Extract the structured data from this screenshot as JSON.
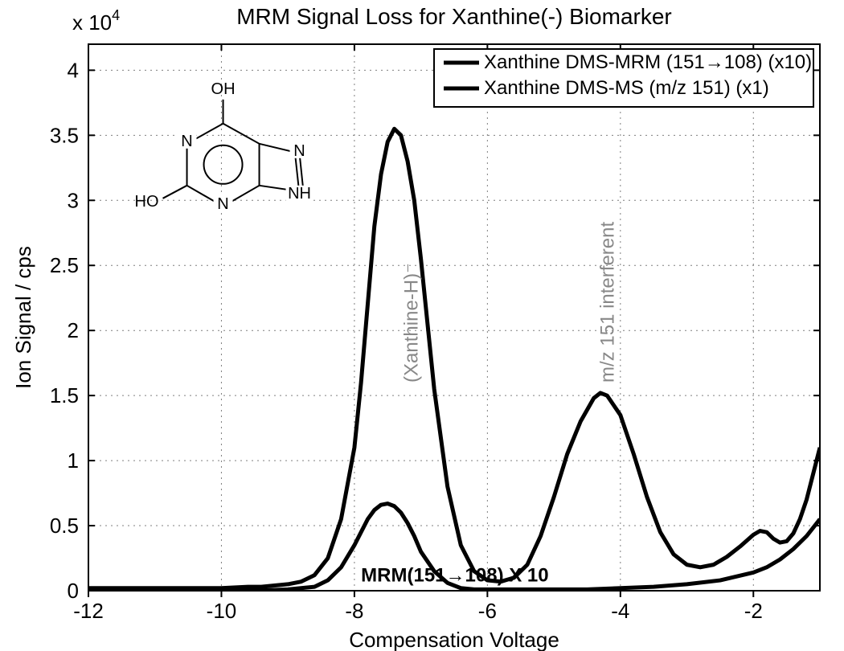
{
  "chart": {
    "type": "line",
    "title": "MRM Signal Loss for Xanthine(-) Biomarker",
    "title_fontsize": 28,
    "xlabel": "Compensation Voltage",
    "ylabel": "Ion Signal / cps",
    "axis_label_fontsize": 26,
    "y_exponent_label": "x 10",
    "y_exponent_sup": "4",
    "xlim": [
      -12,
      -1
    ],
    "ylim": [
      0,
      4.2
    ],
    "xticks": [
      -12,
      -10,
      -8,
      -6,
      -4,
      -2
    ],
    "yticks": [
      0,
      0.5,
      1,
      1.5,
      2,
      2.5,
      3,
      3.5,
      4
    ],
    "tick_fontsize": 26,
    "background_color": "#ffffff",
    "grid_color": "#7f7f7f",
    "grid_dash": "2,5",
    "axis_color": "#000000",
    "line_width": 5,
    "line_color": "#000000",
    "legend": {
      "items": [
        "Xanthine DMS-MRM (151→108) (x10)",
        "Xanthine DMS-MS (m/z 151) (x1)"
      ],
      "box_stroke": "#000000",
      "box_fill": "#ffffff",
      "fontsize": 24
    },
    "annotations": {
      "vertical1": "(Xanthine-H)⁻",
      "vertical2": "m/z 151 interferent",
      "mrm_label": "MRM(151→108) X 10",
      "annotation_color": "#888888",
      "annotation_fontsize": 24
    },
    "series": [
      {
        "name": "DMS-MS",
        "data": [
          [
            -12.0,
            0.02
          ],
          [
            -11.5,
            0.02
          ],
          [
            -11.0,
            0.02
          ],
          [
            -10.5,
            0.02
          ],
          [
            -10.0,
            0.02
          ],
          [
            -9.6,
            0.03
          ],
          [
            -9.4,
            0.03
          ],
          [
            -9.2,
            0.04
          ],
          [
            -9.0,
            0.05
          ],
          [
            -8.8,
            0.07
          ],
          [
            -8.6,
            0.12
          ],
          [
            -8.4,
            0.25
          ],
          [
            -8.2,
            0.55
          ],
          [
            -8.0,
            1.1
          ],
          [
            -7.9,
            1.6
          ],
          [
            -7.8,
            2.2
          ],
          [
            -7.7,
            2.8
          ],
          [
            -7.6,
            3.2
          ],
          [
            -7.5,
            3.45
          ],
          [
            -7.4,
            3.55
          ],
          [
            -7.3,
            3.5
          ],
          [
            -7.2,
            3.3
          ],
          [
            -7.1,
            3.0
          ],
          [
            -7.0,
            2.55
          ],
          [
            -6.9,
            2.05
          ],
          [
            -6.8,
            1.55
          ],
          [
            -6.6,
            0.8
          ],
          [
            -6.4,
            0.35
          ],
          [
            -6.2,
            0.15
          ],
          [
            -6.0,
            0.08
          ],
          [
            -5.8,
            0.07
          ],
          [
            -5.6,
            0.1
          ],
          [
            -5.4,
            0.2
          ],
          [
            -5.2,
            0.42
          ],
          [
            -5.0,
            0.72
          ],
          [
            -4.8,
            1.05
          ],
          [
            -4.6,
            1.3
          ],
          [
            -4.4,
            1.48
          ],
          [
            -4.3,
            1.52
          ],
          [
            -4.2,
            1.5
          ],
          [
            -4.0,
            1.35
          ],
          [
            -3.8,
            1.05
          ],
          [
            -3.6,
            0.72
          ],
          [
            -3.4,
            0.45
          ],
          [
            -3.2,
            0.28
          ],
          [
            -3.0,
            0.2
          ],
          [
            -2.8,
            0.18
          ],
          [
            -2.6,
            0.2
          ],
          [
            -2.4,
            0.26
          ],
          [
            -2.2,
            0.34
          ],
          [
            -2.0,
            0.43
          ],
          [
            -1.9,
            0.46
          ],
          [
            -1.8,
            0.45
          ],
          [
            -1.7,
            0.4
          ],
          [
            -1.6,
            0.37
          ],
          [
            -1.5,
            0.38
          ],
          [
            -1.4,
            0.44
          ],
          [
            -1.3,
            0.55
          ],
          [
            -1.2,
            0.7
          ],
          [
            -1.1,
            0.9
          ],
          [
            -1.0,
            1.1
          ]
        ]
      },
      {
        "name": "DMS-MRM",
        "data": [
          [
            -12.0,
            0.0
          ],
          [
            -11.0,
            0.0
          ],
          [
            -10.0,
            0.0
          ],
          [
            -9.5,
            0.0
          ],
          [
            -9.0,
            0.01
          ],
          [
            -8.6,
            0.03
          ],
          [
            -8.4,
            0.08
          ],
          [
            -8.2,
            0.18
          ],
          [
            -8.0,
            0.35
          ],
          [
            -7.9,
            0.45
          ],
          [
            -7.8,
            0.55
          ],
          [
            -7.7,
            0.62
          ],
          [
            -7.6,
            0.66
          ],
          [
            -7.5,
            0.67
          ],
          [
            -7.4,
            0.65
          ],
          [
            -7.3,
            0.6
          ],
          [
            -7.2,
            0.52
          ],
          [
            -7.1,
            0.42
          ],
          [
            -7.0,
            0.3
          ],
          [
            -6.8,
            0.15
          ],
          [
            -6.6,
            0.06
          ],
          [
            -6.4,
            0.02
          ],
          [
            -6.2,
            0.01
          ],
          [
            -6.0,
            0.01
          ],
          [
            -5.5,
            0.01
          ],
          [
            -5.0,
            0.01
          ],
          [
            -4.5,
            0.01
          ],
          [
            -4.0,
            0.02
          ],
          [
            -3.5,
            0.03
          ],
          [
            -3.0,
            0.05
          ],
          [
            -2.5,
            0.08
          ],
          [
            -2.0,
            0.14
          ],
          [
            -1.8,
            0.18
          ],
          [
            -1.6,
            0.24
          ],
          [
            -1.4,
            0.32
          ],
          [
            -1.2,
            0.42
          ],
          [
            -1.0,
            0.55
          ]
        ]
      }
    ],
    "molecule": {
      "stroke": "#000000",
      "stroke_width": 2,
      "labels": {
        "OH_top": "OH",
        "OH_left": "HO",
        "N1": "N",
        "N2": "N",
        "N3": "N",
        "NH": "NH"
      }
    }
  }
}
